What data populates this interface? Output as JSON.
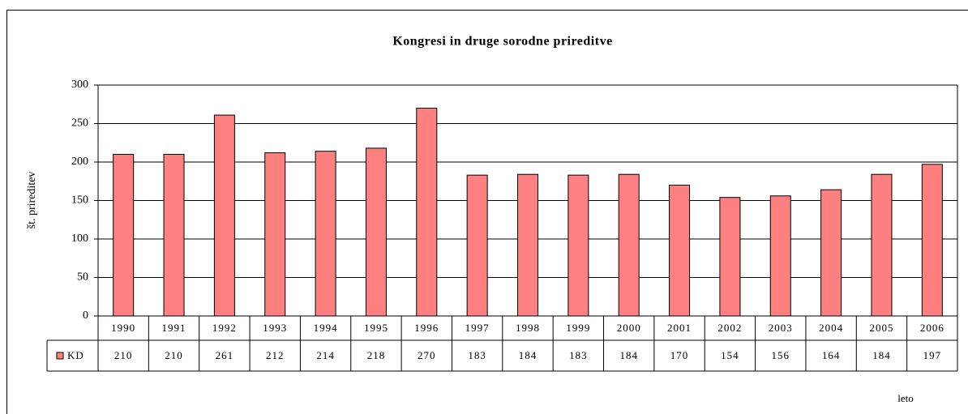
{
  "chart_data": {
    "type": "bar",
    "title": "Kongresi in druge sorodne prireditve",
    "y_label": "št. prireditev",
    "x_label": "leto",
    "categories": [
      "1990",
      "1991",
      "1992",
      "1993",
      "1994",
      "1995",
      "1996",
      "1997",
      "1998",
      "1999",
      "2000",
      "2001",
      "2002",
      "2003",
      "2004",
      "2005",
      "2006"
    ],
    "series": [
      {
        "name": "KD",
        "color": "#ff8080",
        "values": [
          210,
          210,
          261,
          212,
          214,
          218,
          270,
          183,
          184,
          183,
          184,
          170,
          154,
          156,
          164,
          184,
          197
        ]
      }
    ],
    "ylim": [
      0,
      300
    ],
    "yticks": [
      0,
      50,
      100,
      150,
      200,
      250,
      300
    ],
    "grid": true,
    "data_table": true
  }
}
